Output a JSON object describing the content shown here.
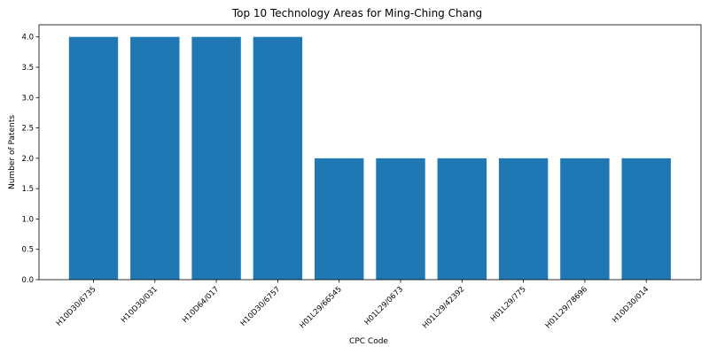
{
  "chart_data": {
    "type": "bar",
    "title": "Top 10 Technology Areas for Ming-Ching Chang",
    "xlabel": "CPC Code",
    "ylabel": "Number of Patents",
    "categories": [
      "H10D30/6735",
      "H10D30/031",
      "H10D64/017",
      "H10D30/6757",
      "H01L29/66545",
      "H01L29/0673",
      "H01L29/42392",
      "H01L29/775",
      "H01L29/78696",
      "H10D30/014"
    ],
    "values": [
      4,
      4,
      4,
      4,
      2,
      2,
      2,
      2,
      2,
      2
    ],
    "ylim": [
      0,
      4.2
    ],
    "yticks": [
      "0.0",
      "0.5",
      "1.0",
      "1.5",
      "2.0",
      "2.5",
      "3.0",
      "3.5",
      "4.0"
    ],
    "bar_color": "#1f77b4",
    "grid": false,
    "legend": "none"
  }
}
